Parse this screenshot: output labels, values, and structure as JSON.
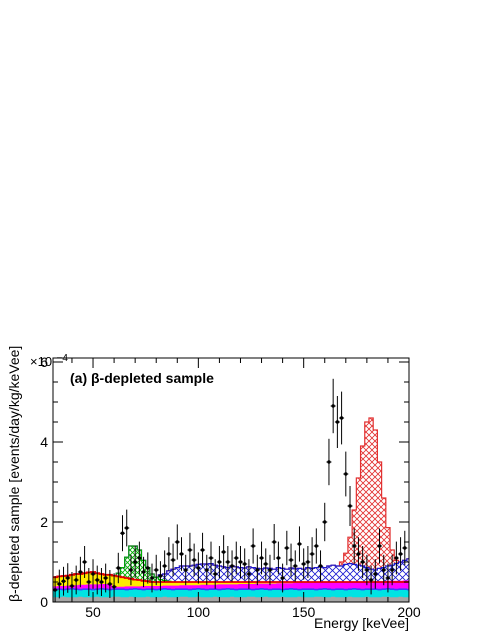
{
  "chart_data": {
    "type": "histogram",
    "panel_label": "(a) β-depleted sample",
    "xlabel": "Energy [keVee]",
    "ylabel": "β-depleted sample [events/day/kg/keVee]",
    "y_exponent": "×10⁻⁴",
    "y_exponent_base": "×10",
    "y_exponent_power": "−4",
    "xlim": [
      31,
      200
    ],
    "ylim": [
      0,
      6.1
    ],
    "y_scale_factor": 0.0001,
    "x_ticks": [
      50,
      100,
      150,
      200
    ],
    "x_tick_labels": [
      "50",
      "100",
      "150",
      "200"
    ],
    "y_ticks": [
      0,
      2,
      4,
      6
    ],
    "y_tick_labels": [
      "0",
      "2",
      "4",
      "6"
    ],
    "grid": false,
    "legend": "none",
    "bin_edges_start": 31,
    "bin_width": 2,
    "colors": {
      "gray": "#a6a6a6",
      "cyan": "#00e3e3",
      "blue_fill": "#3c3cff",
      "magenta": "#ff00ff",
      "yellow": "#ffea00",
      "red_line": "#e00000",
      "green_hatch": "#00b000",
      "blue_hatch": "#1a1ad0",
      "peak_hatch": "#e23030",
      "data_points": "#000000"
    },
    "series": [
      {
        "role": "gray",
        "values": [
          0.12,
          0.12,
          0.13,
          0.12,
          0.12,
          0.12,
          0.13,
          0.12,
          0.12,
          0.12,
          0.13,
          0.12,
          0.12,
          0.12,
          0.13,
          0.13,
          0.12,
          0.12,
          0.13,
          0.12,
          0.12,
          0.12,
          0.13,
          0.12,
          0.12,
          0.12,
          0.13,
          0.12,
          0.12,
          0.12,
          0.13,
          0.13,
          0.12,
          0.12,
          0.13,
          0.12,
          0.12,
          0.12,
          0.13,
          0.12,
          0.12,
          0.12,
          0.13,
          0.12,
          0.12,
          0.12,
          0.13,
          0.13,
          0.12,
          0.12,
          0.13,
          0.12,
          0.12,
          0.12,
          0.13,
          0.12,
          0.12,
          0.12,
          0.13,
          0.12,
          0.12,
          0.12,
          0.13,
          0.13,
          0.12,
          0.12,
          0.13,
          0.12,
          0.12,
          0.12,
          0.13,
          0.12,
          0.12,
          0.12,
          0.13,
          0.12,
          0.12,
          0.12,
          0.13,
          0.13,
          0.12,
          0.12,
          0.13,
          0.12,
          0.12
        ]
      },
      {
        "role": "cyan",
        "values": [
          0.3,
          0.3,
          0.29,
          0.3,
          0.31,
          0.3,
          0.29,
          0.3,
          0.3,
          0.29,
          0.3,
          0.31,
          0.3,
          0.29,
          0.3,
          0.3,
          0.3,
          0.29,
          0.3,
          0.31,
          0.3,
          0.29,
          0.3,
          0.3,
          0.29,
          0.3,
          0.31,
          0.3,
          0.29,
          0.3,
          0.3,
          0.3,
          0.29,
          0.3,
          0.31,
          0.3,
          0.29,
          0.3,
          0.3,
          0.29,
          0.3,
          0.31,
          0.3,
          0.29,
          0.3,
          0.3,
          0.3,
          0.29,
          0.3,
          0.31,
          0.3,
          0.29,
          0.3,
          0.3,
          0.29,
          0.3,
          0.31,
          0.3,
          0.29,
          0.3,
          0.3,
          0.3,
          0.29,
          0.3,
          0.31,
          0.3,
          0.29,
          0.3,
          0.3,
          0.29,
          0.3,
          0.31,
          0.3,
          0.29,
          0.3,
          0.3,
          0.3,
          0.29,
          0.3,
          0.31,
          0.3,
          0.29,
          0.3,
          0.3,
          0.29
        ]
      },
      {
        "role": "blue_fill",
        "values": [
          0.34,
          0.34,
          0.33,
          0.34,
          0.35,
          0.34,
          0.33,
          0.34,
          0.34,
          0.33,
          0.34,
          0.35,
          0.34,
          0.33,
          0.34,
          0.34,
          0.34,
          0.33,
          0.34,
          0.35,
          0.34,
          0.33,
          0.34,
          0.34,
          0.33,
          0.34,
          0.35,
          0.34,
          0.33,
          0.34,
          0.34,
          0.34,
          0.33,
          0.34,
          0.35,
          0.34,
          0.33,
          0.34,
          0.34,
          0.33,
          0.34,
          0.35,
          0.34,
          0.33,
          0.34,
          0.34,
          0.34,
          0.33,
          0.34,
          0.35,
          0.34,
          0.33,
          0.34,
          0.34,
          0.33,
          0.34,
          0.35,
          0.34,
          0.33,
          0.34,
          0.34,
          0.34,
          0.33,
          0.34,
          0.35,
          0.34,
          0.33,
          0.34,
          0.34,
          0.33,
          0.34,
          0.35,
          0.34,
          0.33,
          0.34,
          0.34,
          0.34,
          0.33,
          0.34,
          0.35,
          0.34,
          0.33,
          0.34,
          0.34,
          0.33
        ]
      },
      {
        "role": "magenta",
        "values": [
          0.39,
          0.4,
          0.4,
          0.41,
          0.42,
          0.42,
          0.43,
          0.43,
          0.44,
          0.44,
          0.44,
          0.45,
          0.45,
          0.46,
          0.38,
          0.38,
          0.38,
          0.39,
          0.39,
          0.39,
          0.39,
          0.4,
          0.4,
          0.4,
          0.4,
          0.4,
          0.41,
          0.41,
          0.41,
          0.41,
          0.42,
          0.42,
          0.42,
          0.42,
          0.42,
          0.43,
          0.43,
          0.43,
          0.43,
          0.44,
          0.44,
          0.44,
          0.44,
          0.44,
          0.45,
          0.45,
          0.45,
          0.45,
          0.46,
          0.46,
          0.46,
          0.46,
          0.46,
          0.47,
          0.47,
          0.47,
          0.47,
          0.48,
          0.48,
          0.48,
          0.48,
          0.48,
          0.49,
          0.49,
          0.49,
          0.49,
          0.5,
          0.5,
          0.5,
          0.5,
          0.5,
          0.51,
          0.51,
          0.51,
          0.51,
          0.52,
          0.52,
          0.52,
          0.52,
          0.53,
          0.53,
          0.53,
          0.53,
          0.54,
          0.54
        ]
      },
      {
        "role": "yellow",
        "values": [
          0.62,
          0.64,
          0.65,
          0.66,
          0.68,
          0.7,
          0.7,
          0.72,
          0.74,
          0.75,
          0.72,
          0.7,
          0.68,
          0.68,
          0.66,
          0.64,
          0.62,
          0.6,
          0.58,
          0.56,
          0.55,
          0.53,
          0.52,
          0.5,
          0.5,
          0.5,
          0.5,
          0.5,
          0.5,
          0.5,
          0.5,
          0.5,
          0.5,
          0.5,
          0.5,
          0.5,
          0.5,
          0.5,
          0.5,
          0.5,
          0.5,
          0.5,
          0.5,
          0.5,
          0.5,
          0.5,
          0.5,
          0.5,
          0.5,
          0.5,
          0.5,
          0.5,
          0.5,
          0.5,
          0.5,
          0.5,
          0.5,
          0.5,
          0.5,
          0.5,
          0.5,
          0.5,
          0.5,
          0.5,
          0.5,
          0.5,
          0.5,
          0.5,
          0.5,
          0.5,
          0.5,
          0.5,
          0.5,
          0.5,
          0.5,
          0.5,
          0.5,
          0.5,
          0.5,
          0.5,
          0.5,
          0.5,
          0.5,
          0.5,
          0.5
        ]
      },
      {
        "role": "red_line",
        "values": [
          0.62,
          0.64,
          0.65,
          0.66,
          0.68,
          0.7,
          0.7,
          0.72,
          0.74,
          0.75,
          0.72,
          0.7,
          0.68,
          0.68,
          0.66,
          0.64,
          0.62,
          0.6,
          0.58,
          0.56,
          0.55,
          0.53,
          0.52,
          0.5,
          0.5,
          0.5,
          0.5,
          0.5,
          0.5,
          0.5,
          0.5,
          0.5,
          0.5,
          0.5,
          0.5,
          0.5,
          0.5,
          0.5,
          0.5,
          0.5,
          0.5,
          0.5,
          0.5,
          0.5,
          0.5,
          0.5,
          0.5,
          0.5,
          0.5,
          0.5,
          0.5,
          0.5,
          0.5,
          0.5,
          0.5,
          0.5,
          0.5,
          0.5,
          0.5,
          0.5,
          0.5,
          0.5,
          0.5,
          0.5,
          0.5,
          0.5,
          0.5,
          0.5,
          0.5,
          0.5,
          0.5,
          0.5,
          0.5,
          0.5,
          0.5,
          0.5,
          0.5,
          0.5,
          0.5,
          0.5,
          0.5,
          0.5,
          0.5,
          0.5,
          0.5
        ]
      },
      {
        "role": "green_hatch",
        "values": [
          0.62,
          0.64,
          0.65,
          0.66,
          0.68,
          0.7,
          0.7,
          0.72,
          0.74,
          0.75,
          0.72,
          0.7,
          0.68,
          0.68,
          0.66,
          0.72,
          0.86,
          1.12,
          1.4,
          1.4,
          1.3,
          1.04,
          0.86,
          0.7,
          0.62,
          0.56,
          0.54,
          0.52,
          0.5,
          0.5,
          0.5,
          0.5,
          0.5,
          0.5,
          0.5,
          0.5,
          0.5,
          0.5,
          0.5,
          0.5,
          0.5,
          0.5,
          0.5,
          0.5,
          0.5,
          0.5,
          0.5,
          0.5,
          0.5,
          0.5,
          0.5,
          0.5,
          0.5,
          0.5,
          0.5,
          0.5,
          0.5,
          0.5,
          0.5,
          0.5,
          0.5,
          0.5,
          0.5,
          0.5,
          0.5,
          0.5,
          0.5,
          0.5,
          0.5,
          0.5,
          0.5,
          0.5,
          0.5,
          0.5,
          0.5,
          0.5,
          0.5,
          0.5,
          0.5,
          0.5,
          0.5,
          0.5,
          0.5,
          0.5,
          0.5
        ]
      },
      {
        "role": "blue_hatch",
        "values": [
          0.62,
          0.64,
          0.65,
          0.66,
          0.68,
          0.7,
          0.7,
          0.72,
          0.74,
          0.75,
          0.72,
          0.7,
          0.68,
          0.68,
          0.66,
          0.72,
          0.86,
          1.12,
          1.4,
          1.4,
          1.3,
          1.04,
          0.86,
          0.7,
          0.62,
          0.68,
          0.7,
          0.78,
          0.82,
          0.86,
          0.9,
          0.9,
          0.9,
          0.92,
          0.94,
          0.95,
          0.95,
          0.96,
          0.92,
          0.9,
          0.88,
          0.86,
          0.9,
          0.88,
          0.86,
          0.85,
          0.88,
          0.86,
          0.84,
          0.83,
          0.85,
          0.84,
          0.82,
          0.86,
          0.84,
          0.82,
          0.85,
          0.83,
          0.84,
          0.82,
          0.86,
          0.84,
          0.86,
          0.88,
          0.86,
          0.9,
          0.92,
          0.9,
          0.9,
          0.94,
          0.96,
          0.94,
          0.92,
          0.9,
          0.86,
          0.82,
          0.8,
          0.84,
          0.86,
          0.9,
          0.92,
          0.96,
          1.0,
          1.04,
          1.08
        ]
      },
      {
        "role": "peak_hatch",
        "values": [
          0.62,
          0.64,
          0.65,
          0.66,
          0.68,
          0.7,
          0.7,
          0.72,
          0.74,
          0.75,
          0.72,
          0.7,
          0.68,
          0.68,
          0.66,
          0.72,
          0.86,
          1.12,
          1.4,
          1.4,
          1.3,
          1.04,
          0.86,
          0.7,
          0.62,
          0.68,
          0.7,
          0.78,
          0.82,
          0.86,
          0.9,
          0.9,
          0.9,
          0.92,
          0.94,
          0.95,
          0.95,
          0.96,
          0.92,
          0.9,
          0.88,
          0.86,
          0.9,
          0.88,
          0.86,
          0.85,
          0.88,
          0.86,
          0.84,
          0.83,
          0.85,
          0.84,
          0.82,
          0.86,
          0.84,
          0.82,
          0.85,
          0.83,
          0.84,
          0.82,
          0.86,
          0.84,
          0.86,
          0.88,
          0.86,
          0.9,
          0.92,
          0.9,
          1.0,
          1.22,
          1.62,
          2.3,
          3.1,
          3.9,
          4.5,
          4.6,
          4.3,
          3.5,
          2.6,
          1.86,
          1.3,
          1.04,
          1.0,
          1.04,
          1.08
        ]
      }
    ],
    "data_points": {
      "x": [
        32,
        34,
        36,
        38,
        40,
        42,
        44,
        46,
        48,
        50,
        52,
        54,
        56,
        58,
        60,
        62,
        64,
        66,
        68,
        70,
        72,
        74,
        76,
        78,
        80,
        82,
        84,
        86,
        88,
        90,
        92,
        94,
        96,
        98,
        100,
        102,
        104,
        106,
        108,
        110,
        112,
        114,
        116,
        118,
        120,
        122,
        124,
        126,
        128,
        130,
        132,
        134,
        136,
        138,
        140,
        142,
        144,
        146,
        148,
        150,
        152,
        154,
        156,
        158,
        160,
        162,
        164,
        166,
        168,
        170,
        172,
        174,
        176,
        178,
        180,
        182,
        184,
        186,
        188,
        190,
        192,
        194,
        196,
        198
      ],
      "y": [
        0.3,
        0.45,
        0.52,
        0.6,
        0.4,
        0.55,
        0.75,
        1.0,
        0.5,
        0.7,
        0.55,
        0.5,
        0.6,
        0.45,
        0.38,
        0.85,
        1.72,
        1.85,
        0.8,
        1.0,
        1.1,
        0.75,
        0.85,
        0.6,
        0.8,
        0.65,
        0.9,
        1.2,
        1.05,
        1.5,
        1.2,
        0.8,
        1.3,
        1.05,
        0.85,
        1.3,
        0.8,
        1.1,
        0.7,
        1.0,
        1.25,
        1.0,
        0.9,
        1.1,
        1.0,
        0.95,
        0.7,
        1.4,
        0.8,
        1.1,
        0.95,
        0.8,
        1.5,
        1.1,
        0.6,
        1.35,
        1.05,
        0.9,
        1.45,
        0.95,
        1.0,
        1.2,
        1.4,
        0.9,
        2.0,
        3.5,
        4.9,
        4.5,
        4.6,
        3.2,
        2.4,
        1.4,
        1.2,
        1.0,
        0.8,
        0.55,
        0.7,
        1.4,
        0.8,
        0.6,
        0.8,
        1.1,
        1.2,
        1.35
      ],
      "err": [
        0.35,
        0.36,
        0.36,
        0.37,
        0.35,
        0.36,
        0.38,
        0.4,
        0.35,
        0.37,
        0.36,
        0.35,
        0.36,
        0.35,
        0.34,
        0.38,
        0.45,
        0.46,
        0.38,
        0.4,
        0.41,
        0.38,
        0.39,
        0.36,
        0.38,
        0.37,
        0.39,
        0.42,
        0.41,
        0.44,
        0.42,
        0.38,
        0.43,
        0.41,
        0.39,
        0.43,
        0.38,
        0.41,
        0.37,
        0.4,
        0.42,
        0.4,
        0.39,
        0.41,
        0.4,
        0.39,
        0.37,
        0.44,
        0.38,
        0.41,
        0.39,
        0.38,
        0.45,
        0.41,
        0.36,
        0.43,
        0.41,
        0.39,
        0.44,
        0.39,
        0.4,
        0.42,
        0.44,
        0.39,
        0.48,
        0.58,
        0.68,
        0.65,
        0.66,
        0.56,
        0.5,
        0.44,
        0.42,
        0.4,
        0.38,
        0.36,
        0.37,
        0.44,
        0.38,
        0.36,
        0.38,
        0.41,
        0.42,
        0.43
      ]
    }
  }
}
